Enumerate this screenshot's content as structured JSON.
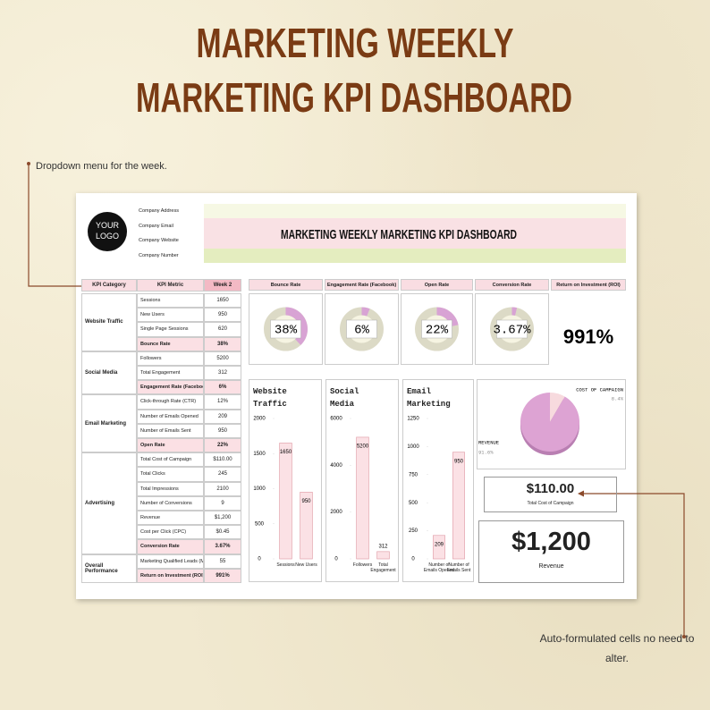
{
  "header": {
    "title_line1": "MARKETING WEEKLY",
    "title_line2": "MARKETING KPI DASHBOARD"
  },
  "annotations": {
    "dropdown": "Dropdown menu for the week.",
    "auto": "Auto-formulated cells no need to alter."
  },
  "dashboard": {
    "logo": "YOUR LOGO",
    "company_fields": [
      "Company Address",
      "Company Email",
      "Company Website",
      "Company Number"
    ],
    "title": "MARKETING WEEKLY MARKETING KPI DASHBOARD",
    "table": {
      "headers": [
        "KPI Category",
        "KPI Metric",
        "Week 2"
      ],
      "groups": [
        {
          "category": "Website Traffic",
          "rows": [
            [
              "Sessions",
              "1650"
            ],
            [
              "New Users",
              "950"
            ],
            [
              "Single Page Sessions",
              "620"
            ],
            [
              "Bounce Rate",
              "38%"
            ]
          ]
        },
        {
          "category": "Social Media",
          "rows": [
            [
              "Followers",
              "5200"
            ],
            [
              "Total Engagement",
              "312"
            ],
            [
              "Engagement Rate (Facebook)",
              "6%"
            ]
          ]
        },
        {
          "category": "Email Marketing",
          "rows": [
            [
              "Click-through Rate (CTR)",
              "12%"
            ],
            [
              "Number of Emails Opened",
              "209"
            ],
            [
              "Number of Emails Sent",
              "950"
            ],
            [
              "Open Rate",
              "22%"
            ]
          ]
        },
        {
          "category": "Advertising",
          "rows": [
            [
              "Total Cost of Campaign",
              "$110.00"
            ],
            [
              "Total Clicks",
              "245"
            ],
            [
              "Total Impressions",
              "2100"
            ],
            [
              "Number of Conversions",
              "9"
            ],
            [
              "Revenue",
              "$1,200"
            ],
            [
              "Cost per Click (CPC)",
              "$0.45"
            ],
            [
              "Conversion Rate",
              "3.67%"
            ]
          ]
        },
        {
          "category": "Overall Performance",
          "rows": [
            [
              "Marketing Qualified Leads (MQLs)",
              "55"
            ],
            [
              "Return on Investment (ROI)",
              "991%"
            ]
          ]
        }
      ]
    },
    "kpis": [
      {
        "label": "Bounce Rate",
        "value": 38,
        "value_label": "38%"
      },
      {
        "label": "Engagement Rate (Facebook)",
        "value": 6,
        "value_label": "6%"
      },
      {
        "label": "Open Rate",
        "value": 22,
        "value_label": "22%"
      },
      {
        "label": "Conversion Rate",
        "value": 3.67,
        "value_label": "3.67%"
      }
    ],
    "roi": {
      "label": "Return on Investment (ROI)",
      "value": "991%"
    },
    "charts": [
      {
        "type": "bar",
        "title": "Website Traffic",
        "categories": [
          "Sessions",
          "New Users"
        ],
        "values": [
          1650,
          950
        ],
        "ylim": [
          0,
          2000
        ],
        "yticks": [
          0,
          500,
          1000,
          1500,
          2000
        ],
        "color": "#fbe1e5"
      },
      {
        "type": "bar",
        "title": "Social Media",
        "categories": [
          "Followers",
          "Total Engagement"
        ],
        "values": [
          5200,
          312
        ],
        "ylim": [
          0,
          6000
        ],
        "yticks": [
          0,
          2000,
          4000,
          6000
        ],
        "color": "#fbe1e5"
      },
      {
        "type": "bar",
        "title": "Email Marketing",
        "categories": [
          "Number of Emails Opened",
          "Number of Emails Sent"
        ],
        "values": [
          209,
          950
        ],
        "ylim": [
          0,
          1250
        ],
        "yticks": [
          0,
          250,
          500,
          750,
          1000,
          1250
        ],
        "color": "#fbe1e5"
      }
    ],
    "pie": {
      "type": "pie",
      "categories": [
        "COST OF CAMPAIGN",
        "REVENUE"
      ],
      "values": [
        8.4,
        91.6
      ],
      "value_labels": [
        "8.4%",
        "91.6%"
      ],
      "colors": [
        "#f7dade",
        "#dda3d3"
      ]
    },
    "cost_card": {
      "value": "$110.00",
      "label": "Total Cost of Campaign"
    },
    "revenue_card": {
      "value": "$1,200",
      "label": "Revenue"
    }
  }
}
